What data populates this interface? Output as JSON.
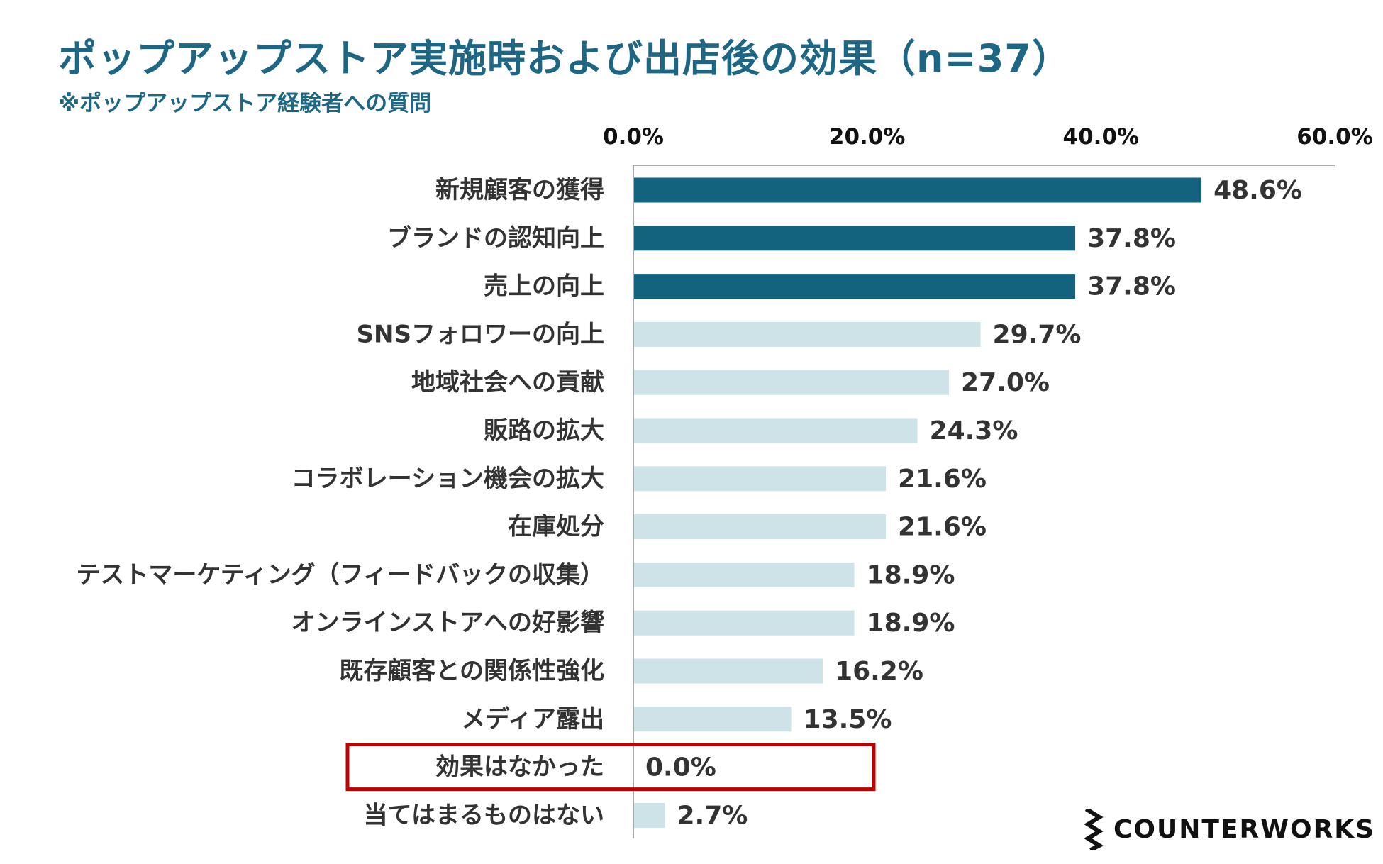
{
  "header": {
    "title": "ポップアップストア実施時および出店後の効果（n=37）",
    "subtitle": "※ポップアップストア経験者への質問"
  },
  "brand": {
    "logo_text": "COUNTERWORKS",
    "logo_icon": "zigzag-bolt-icon"
  },
  "colors": {
    "title": "#1d6784",
    "bar_highlight": "#13637f",
    "bar_normal": "#cde3e7",
    "axis": "#aaaaaa",
    "label": "#333333",
    "callout": "#c00000"
  },
  "chart_data": {
    "type": "bar",
    "orientation": "horizontal",
    "title": "ポップアップストア実施時および出店後の効果（n=37）",
    "subtitle": "※ポップアップストア経験者への質問",
    "xlim": [
      0,
      60
    ],
    "ticks": [
      "0.0%",
      "20.0%",
      "40.0%",
      "60.0%"
    ],
    "tick_values": [
      0,
      20,
      40,
      60
    ],
    "categories": [
      "新規顧客の獲得",
      "ブランドの認知向上",
      "売上の向上",
      "SNSフォロワーの向上",
      "地域社会への貢献",
      "販路の拡大",
      "コラボレーション機会の拡大",
      "在庫処分",
      "テストマーケティング（フィードバックの収集）",
      "オンラインストアへの好影響",
      "既存顧客との関係性強化",
      "メディア露出",
      "効果はなかった",
      "当てはまるものはない"
    ],
    "values": [
      48.6,
      37.8,
      37.8,
      29.7,
      27.0,
      24.3,
      21.6,
      21.6,
      18.9,
      18.9,
      16.2,
      13.5,
      0.0,
      2.7
    ],
    "value_labels": [
      "48.6%",
      "37.8%",
      "37.8%",
      "29.7%",
      "27.0%",
      "24.3%",
      "21.6%",
      "21.6%",
      "18.9%",
      "18.9%",
      "16.2%",
      "13.5%",
      "0.0%",
      "2.7%"
    ],
    "highlighted_top": 3,
    "boxed_category_index": 12
  }
}
